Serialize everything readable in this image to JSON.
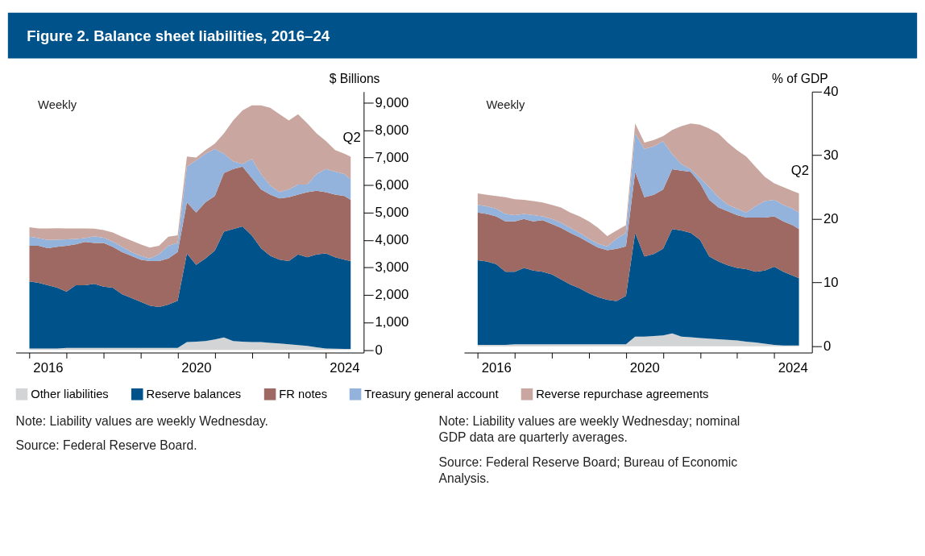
{
  "chart_data": [
    {
      "type": "area",
      "title": "Figure 2. Balance sheet liabilities, 2016–24",
      "ylabel": "$ Billions",
      "stacked": true,
      "grid": false,
      "legend": "bottom",
      "x": [
        "2016-01",
        "2016-04",
        "2016-07",
        "2016-10",
        "2017-01",
        "2017-04",
        "2017-07",
        "2017-10",
        "2018-01",
        "2018-04",
        "2018-07",
        "2018-10",
        "2019-01",
        "2019-04",
        "2019-07",
        "2019-10",
        "2020-01",
        "2020-04",
        "2020-07",
        "2020-10",
        "2021-01",
        "2021-04",
        "2021-07",
        "2021-10",
        "2022-01",
        "2022-04",
        "2022-07",
        "2022-10",
        "2023-01",
        "2023-04",
        "2023-07",
        "2023-10",
        "2024-01",
        "2024-04",
        "2024-07",
        "2024-09"
      ],
      "series": [
        {
          "name": "Other liabilities",
          "color": "#d3d4d6",
          "values": [
            50,
            50,
            50,
            50,
            70,
            70,
            70,
            70,
            70,
            70,
            70,
            70,
            70,
            70,
            70,
            70,
            70,
            280,
            300,
            320,
            380,
            450,
            320,
            300,
            280,
            280,
            250,
            230,
            200,
            170,
            140,
            90,
            50,
            40,
            30,
            30
          ]
        },
        {
          "name": "Reserve balances",
          "color": "#00538a",
          "values": [
            2440,
            2390,
            2300,
            2210,
            2050,
            2280,
            2280,
            2330,
            2230,
            2190,
            1960,
            1820,
            1680,
            1540,
            1490,
            1580,
            1720,
            3230,
            2790,
            3010,
            3230,
            3850,
            4080,
            4190,
            3880,
            3420,
            3170,
            3050,
            3030,
            3300,
            3230,
            3380,
            3460,
            3330,
            3250,
            3200
          ]
        },
        {
          "name": "FR notes",
          "color": "#9e6962",
          "values": [
            1300,
            1350,
            1350,
            1490,
            1670,
            1490,
            1580,
            1490,
            1590,
            1490,
            1530,
            1530,
            1530,
            1620,
            1670,
            1680,
            1770,
            1860,
            1910,
            2040,
            1990,
            2140,
            2180,
            2180,
            2090,
            2140,
            2230,
            2230,
            2330,
            2180,
            2370,
            2320,
            2230,
            2280,
            2320,
            2230
          ]
        },
        {
          "name": "Treasury general account",
          "color": "#94b3dc",
          "values": [
            330,
            280,
            300,
            260,
            230,
            200,
            140,
            240,
            190,
            190,
            190,
            140,
            140,
            100,
            250,
            460,
            330,
            1300,
            1900,
            1770,
            1720,
            700,
            280,
            100,
            700,
            560,
            330,
            230,
            280,
            370,
            280,
            610,
            840,
            840,
            800,
            750
          ]
        },
        {
          "name": "Reverse repurchase agreements",
          "color": "#c9a7a0",
          "values": [
            340,
            350,
            420,
            420,
            400,
            380,
            350,
            280,
            280,
            330,
            370,
            420,
            420,
            390,
            310,
            330,
            280,
            370,
            100,
            130,
            190,
            740,
            1490,
            1950,
            1950,
            2500,
            2830,
            2840,
            2510,
            2560,
            2230,
            1480,
            1020,
            780,
            740,
            820
          ]
        }
      ],
      "xlim": [
        "2015-08-20",
        "2025-01-07"
      ],
      "xticks": [
        {
          "value": "2016",
          "label": null
        },
        {
          "value": "2017",
          "label": null
        },
        {
          "value": "2018",
          "label": null
        },
        {
          "value": "2019",
          "label": null
        },
        {
          "value": "2020",
          "label": null
        },
        {
          "value": "2021",
          "label": null
        },
        {
          "value": "2022",
          "label": null
        },
        {
          "value": "2023",
          "label": null
        },
        {
          "value": "2024",
          "label": null
        },
        {
          "value": "2016-07",
          "label": "2016"
        },
        {
          "value": "2020-07",
          "label": "2020"
        },
        {
          "value": "2024-07",
          "label": "2024"
        }
      ],
      "ylim": [
        -100,
        9400
      ],
      "yticks": [
        0,
        {
          "value": 1000,
          "label": "1,000"
        },
        {
          "value": 2000,
          "label": "2,000"
        },
        {
          "value": 3000,
          "label": "3,000"
        },
        {
          "value": 4000,
          "label": "4,000"
        },
        {
          "value": 5000,
          "label": "5,000"
        },
        {
          "value": 6000,
          "label": "6,000"
        },
        {
          "value": 7000,
          "label": "7,000"
        },
        {
          "value": 8000,
          "label": "8,000"
        },
        {
          "value": 9000,
          "label": "9,000"
        }
      ],
      "annotations": [
        "Weekly",
        "Q2",
        "Note: Liability values are weekly Wednesday.",
        "Source: Federal Reserve Board."
      ]
    },
    {
      "type": "area",
      "ylabel": "% of GDP",
      "stacked": true,
      "grid": false,
      "legend": "bottom",
      "x": [
        "2016-01",
        "2016-04",
        "2016-07",
        "2016-10",
        "2017-01",
        "2017-04",
        "2017-07",
        "2017-10",
        "2018-01",
        "2018-04",
        "2018-07",
        "2018-10",
        "2019-01",
        "2019-04",
        "2019-07",
        "2019-10",
        "2020-01",
        "2020-04",
        "2020-07",
        "2020-10",
        "2021-01",
        "2021-04",
        "2021-07",
        "2021-10",
        "2022-01",
        "2022-04",
        "2022-07",
        "2022-10",
        "2023-01",
        "2023-04",
        "2023-07",
        "2023-10",
        "2024-01",
        "2024-04",
        "2024-07",
        "2024-09"
      ],
      "series": [
        {
          "name": "Other liabilities",
          "color": "#d3d4d6",
          "values": [
            0.2,
            0.2,
            0.2,
            0.2,
            0.3,
            0.3,
            0.3,
            0.3,
            0.3,
            0.3,
            0.3,
            0.3,
            0.3,
            0.3,
            0.3,
            0.3,
            0.3,
            1.5,
            1.5,
            1.6,
            1.7,
            2.0,
            1.5,
            1.4,
            1.3,
            1.2,
            1.1,
            1.0,
            0.9,
            0.7,
            0.6,
            0.4,
            0.2,
            0.1,
            0.1,
            0.1
          ]
        },
        {
          "name": "Reserve balances",
          "color": "#00538a",
          "values": [
            13.3,
            13.1,
            12.7,
            11.5,
            11.4,
            12.0,
            11.6,
            11.4,
            11.0,
            10.2,
            9.4,
            8.8,
            8.0,
            7.4,
            7.0,
            6.8,
            7.6,
            16.3,
            12.6,
            12.9,
            13.6,
            16.4,
            16.7,
            16.4,
            15.4,
            12.9,
            12.2,
            11.7,
            11.4,
            11.4,
            11.1,
            11.5,
            12.3,
            11.6,
            11.0,
            10.6
          ]
        },
        {
          "name": "FR notes",
          "color": "#9e6962",
          "values": [
            7.5,
            7.5,
            7.5,
            7.9,
            7.9,
            7.7,
            7.7,
            8.1,
            7.9,
            8.1,
            8.1,
            8.0,
            8.0,
            7.8,
            7.8,
            8.2,
            7.8,
            9.6,
            9.3,
            9.3,
            9.3,
            9.4,
            9.4,
            9.6,
            8.9,
            8.9,
            8.5,
            8.5,
            8.3,
            8.1,
            8.5,
            8.3,
            7.9,
            7.9,
            7.9,
            7.7
          ]
        },
        {
          "name": "Treasury general account",
          "color": "#94b3dc",
          "values": [
            1.2,
            1.2,
            1.2,
            1.2,
            1.0,
            0.8,
            1.0,
            0.6,
            0.8,
            0.8,
            0.8,
            0.7,
            0.6,
            0.6,
            0.6,
            1.6,
            2.1,
            6.0,
            7.6,
            7.6,
            7.6,
            2.4,
            1.0,
            0.4,
            0.8,
            2.0,
            1.6,
            1.0,
            1.0,
            0.8,
            1.8,
            2.6,
            2.6,
            2.6,
            2.6,
            2.6
          ]
        },
        {
          "name": "Reverse repurchase agreements",
          "color": "#c9a7a0",
          "values": [
            1.8,
            1.8,
            2.0,
            2.6,
            2.5,
            2.2,
            2.2,
            2.2,
            2.2,
            2.4,
            2.4,
            2.6,
            2.7,
            2.5,
            1.6,
            1.3,
            1.2,
            1.6,
            1.0,
            1.0,
            0.8,
            3.8,
            6.0,
            7.2,
            8.4,
            9.2,
            10.0,
            9.8,
            9.2,
            8.8,
            6.2,
            3.8,
            2.6,
            2.8,
            2.8,
            3.0
          ]
        }
      ],
      "xlim": [
        "2015-08-20",
        "2025-01-07"
      ],
      "xticks": [
        {
          "value": "2016",
          "label": null
        },
        {
          "value": "2017",
          "label": null
        },
        {
          "value": "2018",
          "label": null
        },
        {
          "value": "2019",
          "label": null
        },
        {
          "value": "2020",
          "label": null
        },
        {
          "value": "2021",
          "label": null
        },
        {
          "value": "2022",
          "label": null
        },
        {
          "value": "2023",
          "label": null
        },
        {
          "value": "2024",
          "label": null
        },
        {
          "value": "2016-07",
          "label": "2016"
        },
        {
          "value": "2020-07",
          "label": "2020"
        },
        {
          "value": "2024-07",
          "label": "2024"
        }
      ],
      "ylim": [
        -1,
        40
      ],
      "yticks": [
        0,
        10,
        20,
        30,
        40
      ],
      "annotations": [
        "Weekly",
        "Q2",
        "Note: Liability values are weekly Wednesday; nominal GDP data are quarterly averages.",
        "Source: Federal Reserve Board; Bureau of Economic Analysis."
      ]
    }
  ]
}
